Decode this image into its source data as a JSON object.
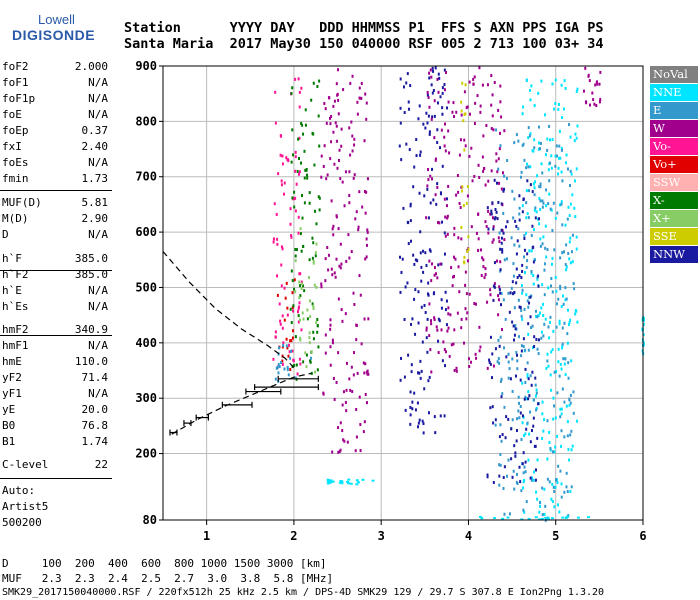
{
  "logo": {
    "line1": "Lowell",
    "line2": "DIGISONDE"
  },
  "header": {
    "row1": "Station      YYYY DAY   DDD HHMMSS P1  FFS S AXN PPS IGA PS",
    "row2": "Santa Maria  2017 May30 150 040000 RSF 005 2 713 100 03+ 34"
  },
  "params": [
    {
      "name": "foF2",
      "value": "2.000"
    },
    {
      "name": "foF1",
      "value": "N/A"
    },
    {
      "name": "foF1p",
      "value": "N/A"
    },
    {
      "name": "foE",
      "value": "N/A"
    },
    {
      "name": "foEp",
      "value": "0.37"
    },
    {
      "name": "fxI",
      "value": "2.40"
    },
    {
      "name": "foEs",
      "value": "N/A"
    },
    {
      "name": "fmin",
      "value": "1.73"
    },
    {
      "name": "MUF(D)",
      "value": "5.81"
    },
    {
      "name": "M(D)",
      "value": "2.90"
    },
    {
      "name": "D",
      "value": "N/A"
    },
    {
      "name": "h`F",
      "value": "385.0"
    },
    {
      "name": "h`F2",
      "value": "385.0"
    },
    {
      "name": "h`E",
      "value": "N/A"
    },
    {
      "name": "h`Es",
      "value": "N/A"
    },
    {
      "name": "hmF2",
      "value": "340.9"
    },
    {
      "name": "hmF1",
      "value": "N/A"
    },
    {
      "name": "hmE",
      "value": "110.0"
    },
    {
      "name": "yF2",
      "value": "71.4"
    },
    {
      "name": "yF1",
      "value": "N/A"
    },
    {
      "name": "yE",
      "value": "20.0"
    },
    {
      "name": "B0",
      "value": "76.8"
    },
    {
      "name": "B1",
      "value": "1.74"
    },
    {
      "name": "C-level",
      "value": "22"
    }
  ],
  "auto": {
    "line1": "Auto:",
    "line2": "Artist5",
    "line3": "500200"
  },
  "footer": {
    "d_row": "D     100  200  400  600  800 1000 1500 3000 [km]",
    "muf_row": "MUF   2.3  2.3  2.4  2.5  2.7  3.0  3.8  5.8 [MHz]",
    "file_row": "SMK29_2017150040000.RSF / 220fx512h 25 kHz 2.5 km / DPS-4D SMK29 129 / 29.7 S 307.8 E Ion2Png 1.3.20"
  },
  "legend": [
    {
      "label": "NoVal",
      "color": "#808080",
      "text": "#ffffff"
    },
    {
      "label": "NNE",
      "color": "#00e5ff",
      "text": "#ffffff"
    },
    {
      "label": "E",
      "color": "#3399cc",
      "text": "#ffffff"
    },
    {
      "label": "W",
      "color": "#a0008c",
      "text": "#ffffff"
    },
    {
      "label": "Vo-",
      "color": "#ff1493",
      "text": "#ffffff"
    },
    {
      "label": "Vo+",
      "color": "#e00000",
      "text": "#ffffff"
    },
    {
      "label": "SSW",
      "color": "#ffb0b0",
      "text": "#ffffff"
    },
    {
      "label": "X-",
      "color": "#007a00",
      "text": "#ffffff"
    },
    {
      "label": "X+",
      "color": "#88cc66",
      "text": "#ffffff"
    },
    {
      "label": "SSE",
      "color": "#cccc00",
      "text": "#ffffff"
    },
    {
      "label": "NNW",
      "color": "#1a1aa0",
      "text": "#ffffff"
    }
  ],
  "chart_data": {
    "type": "scatter",
    "xlim": [
      0.5,
      6
    ],
    "ylim": [
      80,
      900
    ],
    "x_ticks": [
      1,
      2,
      3,
      4,
      5,
      6
    ],
    "y_ticks": [
      80,
      200,
      300,
      400,
      500,
      600,
      700,
      800,
      900
    ],
    "grid": true,
    "profile_curve": [
      [
        0.5,
        565
      ],
      [
        0.8,
        510
      ],
      [
        1.1,
        462
      ],
      [
        1.4,
        425
      ],
      [
        1.7,
        395
      ],
      [
        1.9,
        372
      ],
      [
        2.0,
        355
      ]
    ],
    "bottom_curve": [
      [
        0.6,
        235
      ],
      [
        0.9,
        262
      ],
      [
        1.2,
        285
      ],
      [
        1.5,
        305
      ],
      [
        1.8,
        325
      ],
      [
        2.0,
        338
      ],
      [
        2.2,
        345
      ]
    ],
    "error_bars": [
      {
        "x": 0.62,
        "y": 238,
        "lo": 0.58,
        "hi": 0.66
      },
      {
        "x": 0.78,
        "y": 255,
        "lo": 0.74,
        "hi": 0.82
      },
      {
        "x": 0.95,
        "y": 265,
        "lo": 0.88,
        "hi": 1.02
      },
      {
        "x": 1.35,
        "y": 288,
        "lo": 1.18,
        "hi": 1.52
      },
      {
        "x": 1.65,
        "y": 312,
        "lo": 1.45,
        "hi": 1.85
      },
      {
        "x": 1.92,
        "y": 320,
        "lo": 1.55,
        "hi": 2.28
      },
      {
        "x": 2.05,
        "y": 335,
        "lo": 1.82,
        "hi": 2.28
      }
    ],
    "traces": [
      {
        "cls": "Vo-",
        "x0": 1.75,
        "x1": 2.08,
        "y0": 345,
        "y1": 890
      },
      {
        "cls": "Vo+",
        "x0": 1.8,
        "x1": 2.0,
        "y0": 350,
        "y1": 530
      },
      {
        "cls": "X-",
        "x0": 1.95,
        "x1": 2.3,
        "y0": 335,
        "y1": 880
      },
      {
        "cls": "X+",
        "x0": 2.0,
        "x1": 2.25,
        "y0": 340,
        "y1": 620
      },
      {
        "cls": "E",
        "x0": 1.78,
        "x1": 2.2,
        "y0": 330,
        "y1": 400
      },
      {
        "cls": "W",
        "x0": 2.3,
        "x1": 2.85,
        "y0": 200,
        "y1": 900
      },
      {
        "cls": "NNW",
        "x0": 3.2,
        "x1": 3.75,
        "y0": 240,
        "y1": 900
      },
      {
        "cls": "W",
        "x0": 3.5,
        "x1": 4.4,
        "y0": 350,
        "y1": 900
      },
      {
        "cls": "NNE",
        "x0": 4.6,
        "x1": 5.25,
        "y0": 80,
        "y1": 880
      },
      {
        "cls": "E",
        "x0": 4.3,
        "x1": 5.2,
        "y0": 80,
        "y1": 800
      },
      {
        "cls": "SSE",
        "x0": 3.9,
        "x1": 4.0,
        "y0": 530,
        "y1": 880
      },
      {
        "cls": "NNW",
        "x0": 4.2,
        "x1": 4.8,
        "y0": 150,
        "y1": 700
      },
      {
        "cls": "W",
        "x0": 5.3,
        "x1": 5.5,
        "y0": 830,
        "y1": 900
      },
      {
        "cls": "NNE",
        "x0": 2.35,
        "x1": 2.9,
        "y0": 145,
        "y1": 155
      },
      {
        "cls": "NNE",
        "x0": 4.1,
        "x1": 5.4,
        "y0": 82,
        "y1": 88
      },
      {
        "cls": "NNE",
        "x0": 5.98,
        "x1": 6.0,
        "y0": 380,
        "y1": 450
      }
    ]
  }
}
